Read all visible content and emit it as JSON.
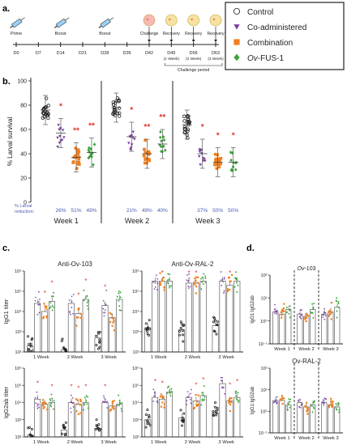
{
  "panels": {
    "a": "a.",
    "b": "b.",
    "c": "c.",
    "d": "d."
  },
  "timeline": {
    "days": [
      "D0",
      "D7",
      "D14",
      "D21",
      "D28",
      "D35",
      "D42",
      "D49",
      "D56",
      "D63"
    ],
    "events": [
      "Prime",
      "Boost",
      "Boost",
      "Challenge",
      "Recovery",
      "Recovery",
      "Recovery"
    ],
    "week_notes": [
      "(1 Week)",
      "(2 Week)",
      "(3 Week)"
    ],
    "period": "Challenge period"
  },
  "legend": {
    "items": [
      {
        "label": "Control",
        "color": "#222222",
        "marker": "circle"
      },
      {
        "label": "Co-administered",
        "color": "#7b3fa0",
        "marker": "triangle"
      },
      {
        "label": "Combination",
        "color": "#f07f1e",
        "marker": "square"
      },
      {
        "label_italic": "Ov",
        "label_rest": "-FUS-1",
        "color": "#3aa53a",
        "marker": "diamond"
      }
    ]
  },
  "colors": {
    "control": "#222222",
    "coadmin": "#7b3fa0",
    "combo": "#f07f1e",
    "fus": "#3aa53a",
    "star": "#e0322a",
    "blue": "#4b5bb5"
  },
  "chart_data": [
    {
      "type": "scatter",
      "panel": "b",
      "ylabel": "% Larval survival",
      "ylim": [
        0,
        100
      ],
      "yticks": [
        "0",
        "20",
        "40",
        "60",
        "80",
        "100"
      ],
      "categories": [
        "Week 1",
        "Week 2",
        "Week 3"
      ],
      "series": [
        {
          "name": "Control",
          "means": [
            76,
            78,
            64
          ]
        },
        {
          "name": "Co-administered",
          "means": [
            57,
            54,
            40
          ]
        },
        {
          "name": "Combination",
          "means": [
            37,
            40,
            33
          ]
        },
        {
          "name": "Ov-FUS-1",
          "means": [
            41,
            48,
            33
          ]
        }
      ],
      "stars": [
        [
          "",
          "*",
          "**",
          "**"
        ],
        [
          "",
          "*",
          "**",
          "**"
        ],
        [
          "",
          "*",
          "*",
          "*"
        ]
      ],
      "reduction_label": "% Larval reduction:",
      "reductions": [
        [
          "26%",
          "51%",
          "49%"
        ],
        [
          "21%",
          "49%",
          "40%"
        ],
        [
          "37%",
          "50%",
          "50%"
        ]
      ]
    },
    {
      "type": "bar",
      "panel": "c",
      "title": "Anti-Ov-103",
      "ylabel": "IgG1 titer",
      "yticks": [
        "10²",
        "10³",
        "10⁴",
        "10⁵",
        "10⁶"
      ],
      "categories": [
        "1",
        "Week",
        "2",
        "Week",
        "3",
        "Week"
      ],
      "x_labels": [
        "1 Week",
        "2 Week",
        "3 Week"
      ],
      "means_log": [
        [
          2.3,
          4.4,
          4.0,
          4.5
        ],
        [
          2.1,
          4.4,
          3.9,
          4.6
        ],
        [
          2.7,
          4.3,
          3.7,
          4.6
        ]
      ]
    },
    {
      "type": "bar",
      "panel": "c",
      "title": "Anti-Ov-RAL-2",
      "ylabel": "",
      "yticks": [
        "10²",
        "10³",
        "10⁴",
        "10⁵",
        "10⁶"
      ],
      "x_labels": [
        "1 Week",
        "2 Week",
        "3 Week"
      ],
      "means_log": [
        [
          3.2,
          5.5,
          5.5,
          5.5
        ],
        [
          3.1,
          5.4,
          5.4,
          5.5
        ],
        [
          3.3,
          5.5,
          5.3,
          5.5
        ]
      ]
    },
    {
      "type": "bar",
      "panel": "c",
      "ylabel": "IgG2ab titer",
      "yticks": [
        "10²",
        "10³",
        "10⁴",
        "10⁵",
        "10⁶"
      ],
      "x_labels": [
        "1 Week",
        "2 Week",
        "3 Week"
      ],
      "means_log": [
        [
          2.1,
          4.2,
          3.9,
          4.0
        ],
        [
          2.4,
          4.0,
          3.9,
          4.0
        ],
        [
          2.5,
          4.0,
          3.8,
          3.9
        ]
      ]
    },
    {
      "type": "bar",
      "panel": "c",
      "ylabel": "",
      "yticks": [
        "10²",
        "10³",
        "10⁴",
        "10⁵",
        "10⁶"
      ],
      "x_labels": [
        "1 Week",
        "2 Week",
        "3 Week"
      ],
      "means_log": [
        [
          3.0,
          4.3,
          4.2,
          4.6
        ],
        [
          3.1,
          4.3,
          4.1,
          4.4
        ],
        [
          3.4,
          5.1,
          4.1,
          4.3
        ]
      ]
    },
    {
      "type": "bar",
      "panel": "d",
      "title_italic": "Ov",
      "title_rest": "-103",
      "ylabel": "IgG1:IgG2ab",
      "yticks": [
        "10⁻¹",
        "10⁰",
        "10¹",
        "10²"
      ],
      "x_labels": [
        "Week 1",
        "Week 2",
        "Week 3"
      ],
      "means_log": [
        [
          0.4,
          0.3,
          0.5
        ],
        [
          0.3,
          0.2,
          0.5
        ],
        [
          0.3,
          0.4,
          0.6
        ]
      ]
    },
    {
      "type": "bar",
      "panel": "d",
      "title": "Ov-RAL-2",
      "ylabel": "IgG1:IgG2ab",
      "yticks": [
        "10⁻¹",
        "10⁰",
        "10¹",
        "10²"
      ],
      "x_labels": [
        "Week 1",
        "Week 2",
        "Week 3"
      ],
      "means_log": [
        [
          0.5,
          0.5,
          0.3
        ],
        [
          0.4,
          0.2,
          0.3
        ],
        [
          0.4,
          0.3,
          0.2
        ]
      ]
    }
  ]
}
